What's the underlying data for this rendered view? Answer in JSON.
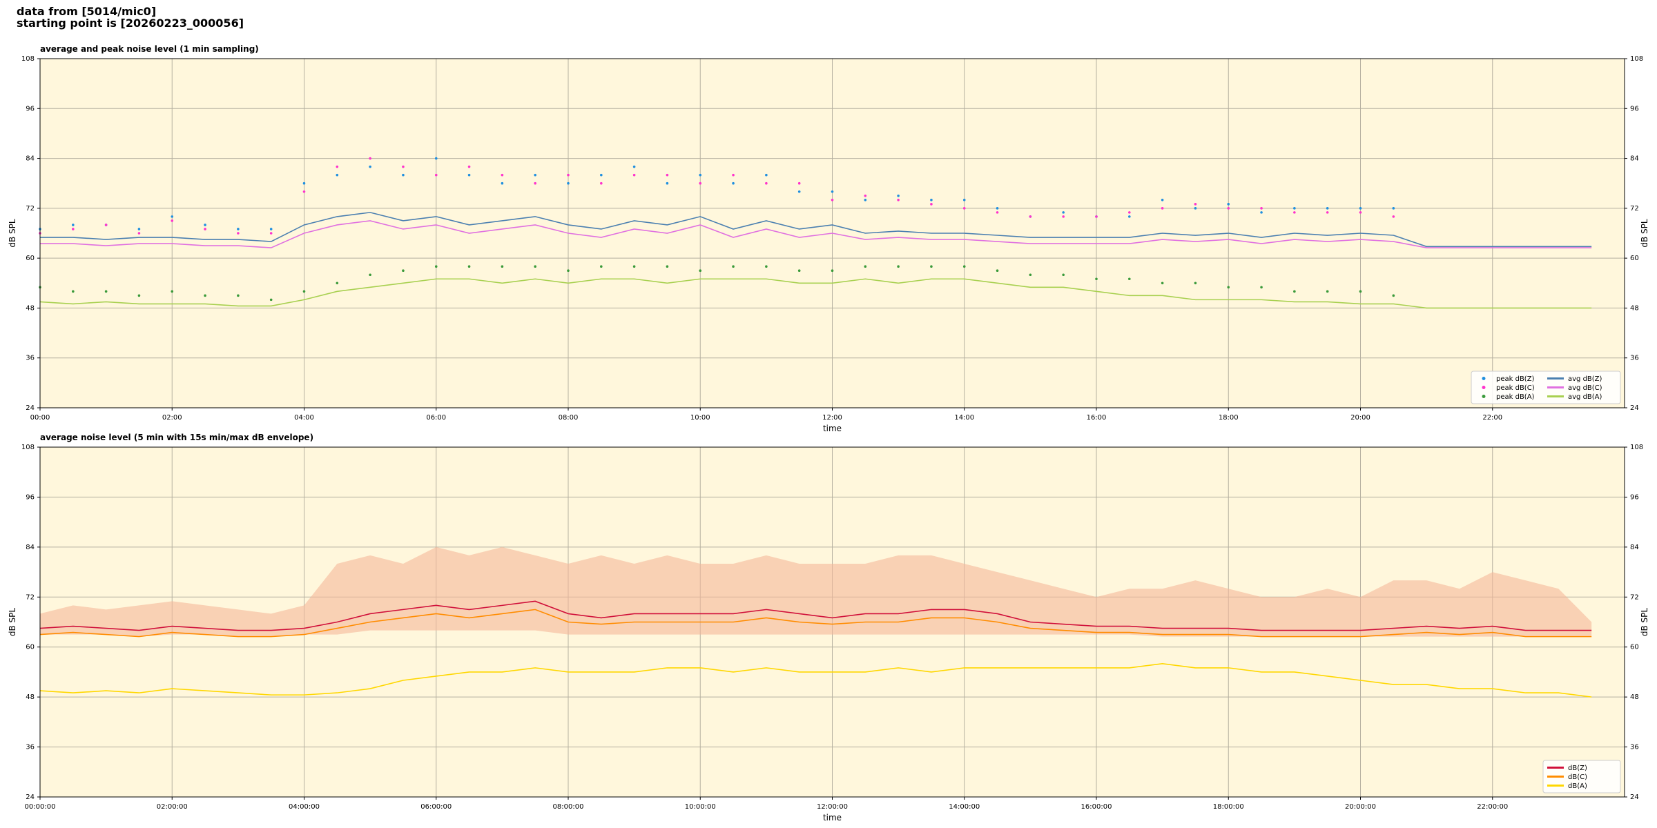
{
  "header": {
    "line1": "data from [5014/mic0]",
    "line2": "starting point is [20260223_000056]"
  },
  "chart_data": [
    {
      "type": "line",
      "title": "average and peak noise level (1 min sampling)",
      "xlabel": "time",
      "ylabel": "dB SPL",
      "x": [
        0,
        0.5,
        1,
        1.5,
        2,
        2.5,
        3,
        3.5,
        4,
        4.5,
        5,
        5.5,
        6,
        6.5,
        7,
        7.5,
        8,
        8.5,
        9,
        9.5,
        10,
        10.5,
        11,
        11.5,
        12,
        12.5,
        13,
        13.5,
        14,
        14.5,
        15,
        15.5,
        16,
        16.5,
        17,
        17.5,
        18,
        18.5,
        19,
        19.5,
        20,
        20.5,
        21,
        21.5,
        22,
        22.5,
        23,
        23.5
      ],
      "xlim": [
        0,
        24
      ],
      "xticks": [
        {
          "value": 0,
          "label": "00:00"
        },
        {
          "value": 2,
          "label": "02:00"
        },
        {
          "value": 4,
          "label": "04:00"
        },
        {
          "value": 6,
          "label": "06:00"
        },
        {
          "value": 8,
          "label": "08:00"
        },
        {
          "value": 10,
          "label": "10:00"
        },
        {
          "value": 12,
          "label": "12:00"
        },
        {
          "value": 14,
          "label": "14:00"
        },
        {
          "value": 16,
          "label": "16:00"
        },
        {
          "value": 18,
          "label": "18:00"
        },
        {
          "value": 20,
          "label": "20:00"
        },
        {
          "value": 22,
          "label": "22:00"
        }
      ],
      "ylim": [
        24,
        108
      ],
      "yticks": [
        24,
        36,
        48,
        60,
        72,
        84,
        96,
        108
      ],
      "grid": true,
      "legend": "lower right",
      "legend_ncol": 2,
      "series": [
        {
          "name": "peak dB(Z)",
          "kind": "scatter",
          "color": "#1f8fdf",
          "values": [
            67,
            68,
            68,
            67,
            70,
            68,
            67,
            67,
            78,
            80,
            82,
            80,
            84,
            80,
            78,
            80,
            78,
            80,
            82,
            78,
            80,
            78,
            80,
            76,
            76,
            74,
            75,
            74,
            74,
            72,
            70,
            71,
            70,
            70,
            74,
            72,
            73,
            71,
            72,
            72,
            72,
            72,
            null,
            null,
            null,
            null,
            null,
            null
          ]
        },
        {
          "name": "peak dB(C)",
          "kind": "scatter",
          "color": "#ff33cc",
          "values": [
            66,
            67,
            68,
            66,
            69,
            67,
            66,
            66,
            76,
            82,
            84,
            82,
            80,
            82,
            80,
            78,
            80,
            78,
            80,
            80,
            78,
            80,
            78,
            78,
            74,
            75,
            74,
            73,
            72,
            71,
            70,
            70,
            70,
            71,
            72,
            73,
            72,
            72,
            71,
            71,
            71,
            70,
            null,
            null,
            null,
            null,
            null,
            null
          ]
        },
        {
          "name": "peak dB(A)",
          "kind": "scatter",
          "color": "#3a9a3a",
          "values": [
            53,
            52,
            52,
            51,
            52,
            51,
            51,
            50,
            52,
            54,
            56,
            57,
            58,
            58,
            58,
            58,
            57,
            58,
            58,
            58,
            57,
            58,
            58,
            57,
            57,
            58,
            58,
            58,
            58,
            57,
            56,
            56,
            55,
            55,
            54,
            54,
            53,
            53,
            52,
            52,
            52,
            51,
            null,
            null,
            null,
            null,
            null,
            null
          ]
        },
        {
          "name": "avg dB(Z)",
          "kind": "line",
          "color": "#4a7fb0",
          "values": [
            65,
            65,
            64.5,
            65,
            65,
            64.5,
            64.5,
            64,
            68,
            70,
            71,
            69,
            70,
            68,
            69,
            70,
            68,
            67,
            69,
            68,
            70,
            67,
            69,
            67,
            68,
            66,
            66.5,
            66,
            66,
            65.5,
            65,
            65,
            65,
            65,
            66,
            65.5,
            66,
            65,
            66,
            65.5,
            66,
            65.5,
            62.8,
            62.8,
            62.8,
            62.8,
            62.8,
            62.8
          ]
        },
        {
          "name": "avg dB(C)",
          "kind": "line",
          "color": "#e070e0",
          "values": [
            63.5,
            63.5,
            63,
            63.5,
            63.5,
            63,
            63,
            62.5,
            66,
            68,
            69,
            67,
            68,
            66,
            67,
            68,
            66,
            65,
            67,
            66,
            68,
            65,
            67,
            65,
            66,
            64.5,
            65,
            64.5,
            64.5,
            64,
            63.5,
            63.5,
            63.5,
            63.5,
            64.5,
            64,
            64.5,
            63.5,
            64.5,
            64,
            64.5,
            64,
            62.5,
            62.5,
            62.5,
            62.5,
            62.5,
            62.5
          ]
        },
        {
          "name": "avg dB(A)",
          "kind": "line",
          "color": "#a8d050",
          "values": [
            49.5,
            49,
            49.5,
            49,
            49,
            49,
            48.5,
            48.5,
            50,
            52,
            53,
            54,
            55,
            55,
            54,
            55,
            54,
            55,
            55,
            54,
            55,
            55,
            55,
            54,
            54,
            55,
            54,
            55,
            55,
            54,
            53,
            53,
            52,
            51,
            51,
            50,
            50,
            50,
            49.5,
            49.5,
            49,
            49,
            48,
            48,
            48,
            48,
            48,
            48
          ]
        }
      ]
    },
    {
      "type": "line",
      "title": "average noise level (5 min with 15s min/max dB envelope)",
      "xlabel": "time",
      "ylabel": "dB SPL",
      "x": [
        0,
        0.5,
        1,
        1.5,
        2,
        2.5,
        3,
        3.5,
        4,
        4.5,
        5,
        5.5,
        6,
        6.5,
        7,
        7.5,
        8,
        8.5,
        9,
        9.5,
        10,
        10.5,
        11,
        11.5,
        12,
        12.5,
        13,
        13.5,
        14,
        14.5,
        15,
        15.5,
        16,
        16.5,
        17,
        17.5,
        18,
        18.5,
        19,
        19.5,
        20,
        20.5,
        21,
        21.5,
        22,
        22.5,
        23,
        23.5
      ],
      "xlim": [
        0,
        24
      ],
      "xticks": [
        {
          "value": 0,
          "label": "00:00:00"
        },
        {
          "value": 2,
          "label": "02:00:00"
        },
        {
          "value": 4,
          "label": "04:00:00"
        },
        {
          "value": 6,
          "label": "06:00:00"
        },
        {
          "value": 8,
          "label": "08:00:00"
        },
        {
          "value": 10,
          "label": "10:00:00"
        },
        {
          "value": 12,
          "label": "12:00:00"
        },
        {
          "value": 14,
          "label": "14:00:00"
        },
        {
          "value": 16,
          "label": "16:00:00"
        },
        {
          "value": 18,
          "label": "18:00:00"
        },
        {
          "value": 20,
          "label": "20:00:00"
        },
        {
          "value": 22,
          "label": "22:00:00"
        }
      ],
      "ylim": [
        24,
        108
      ],
      "yticks": [
        24,
        36,
        48,
        60,
        72,
        84,
        96,
        108
      ],
      "grid": true,
      "legend": "lower right",
      "legend_ncol": 1,
      "envelope": {
        "color": "#f5b89a",
        "upper": [
          68,
          70,
          69,
          70,
          71,
          70,
          69,
          68,
          70,
          80,
          82,
          80,
          84,
          82,
          84,
          82,
          80,
          82,
          80,
          82,
          80,
          80,
          82,
          80,
          80,
          80,
          82,
          82,
          80,
          78,
          76,
          74,
          72,
          74,
          74,
          76,
          74,
          72,
          72,
          74,
          72,
          76,
          76,
          74,
          78,
          76,
          74,
          66
        ],
        "lower": [
          63,
          63,
          63,
          62.5,
          63,
          63,
          62.5,
          62.5,
          63,
          63,
          64,
          64,
          64,
          64,
          64,
          64,
          63,
          63,
          63,
          63,
          63,
          63,
          63,
          63,
          63,
          63,
          63,
          63,
          63,
          63,
          63,
          63,
          63,
          63,
          62.5,
          62.5,
          62.5,
          62.5,
          62.5,
          62.5,
          62.5,
          62.5,
          62.5,
          62.5,
          62.5,
          62.5,
          62.5,
          62.5
        ]
      },
      "series": [
        {
          "name": "dB(Z)",
          "kind": "line",
          "color": "#d0103a",
          "values": [
            64.5,
            65,
            64.5,
            64,
            65,
            64.5,
            64,
            64,
            64.5,
            66,
            68,
            69,
            70,
            69,
            70,
            71,
            68,
            67,
            68,
            68,
            68,
            68,
            69,
            68,
            67,
            68,
            68,
            69,
            69,
            68,
            66,
            65.5,
            65,
            65,
            64.5,
            64.5,
            64.5,
            64,
            64,
            64,
            64,
            64.5,
            65,
            64.5,
            65,
            64,
            64,
            64
          ]
        },
        {
          "name": "dB(C)",
          "kind": "line",
          "color": "#ff8c00",
          "values": [
            63,
            63.5,
            63,
            62.5,
            63.5,
            63,
            62.5,
            62.5,
            63,
            64.5,
            66,
            67,
            68,
            67,
            68,
            69,
            66,
            65.5,
            66,
            66,
            66,
            66,
            67,
            66,
            65.5,
            66,
            66,
            67,
            67,
            66,
            64.5,
            64,
            63.5,
            63.5,
            63,
            63,
            63,
            62.5,
            62.5,
            62.5,
            62.5,
            63,
            63.5,
            63,
            63.5,
            62.5,
            62.5,
            62.5
          ]
        },
        {
          "name": "dB(A)",
          "kind": "line",
          "color": "#ffd700",
          "values": [
            49.5,
            49,
            49.5,
            49,
            50,
            49.5,
            49,
            48.5,
            48.5,
            49,
            50,
            52,
            53,
            54,
            54,
            55,
            54,
            54,
            54,
            55,
            55,
            54,
            55,
            54,
            54,
            54,
            55,
            54,
            55,
            55,
            55,
            55,
            55,
            55,
            56,
            55,
            55,
            54,
            54,
            53,
            52,
            51,
            51,
            50,
            50,
            49,
            49,
            48
          ]
        }
      ]
    }
  ]
}
